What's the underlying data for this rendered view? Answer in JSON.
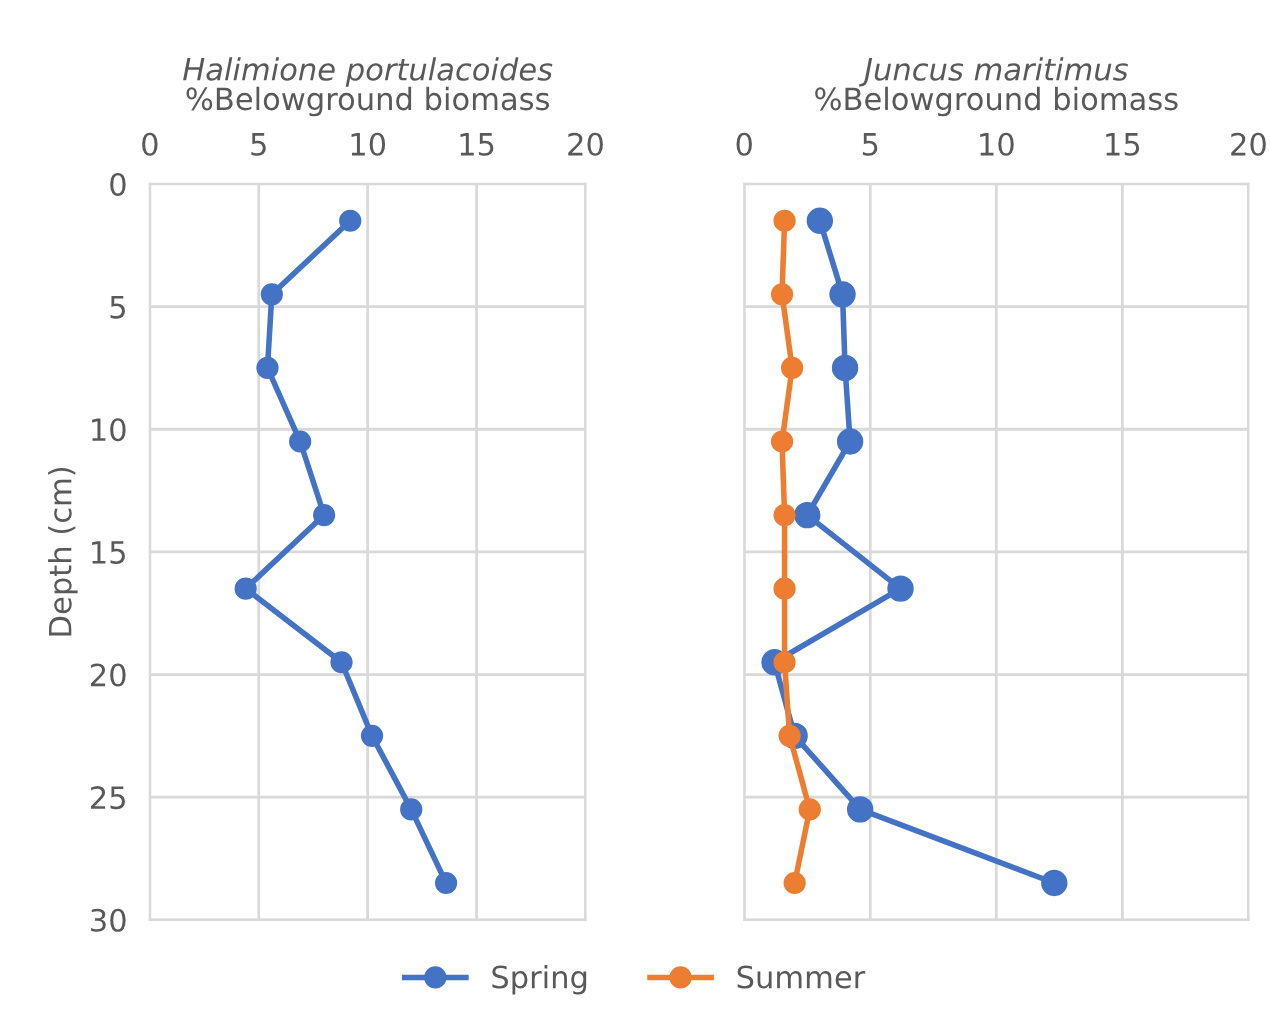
{
  "chart_data": [
    {
      "type": "line",
      "title": "Halimione portulacoides",
      "xlabel": "%Belowground biomass",
      "ylabel": "Depth (cm)",
      "orientation": "horizontal",
      "x": [
        1.5,
        4.5,
        7.5,
        10.5,
        13.5,
        16.5,
        19.5,
        22.5,
        25.5,
        28.5
      ],
      "xlim": [
        0,
        20
      ],
      "xticks": [
        0,
        5,
        10,
        15,
        20
      ],
      "ylim": [
        30,
        0
      ],
      "yticks": [
        0,
        5,
        10,
        15,
        20,
        25,
        30
      ],
      "grid": true,
      "marker": "circle",
      "line_style": "solid",
      "series": [
        {
          "name": "Spring",
          "color": "#4472c4",
          "values": [
            9.2,
            5.6,
            5.4,
            6.9,
            8.0,
            4.4,
            8.8,
            10.2,
            12.0,
            13.6
          ]
        }
      ]
    },
    {
      "type": "line",
      "title": "Juncus maritimus",
      "xlabel": "%Belowground biomass",
      "orientation": "horizontal",
      "x": [
        1.5,
        4.5,
        7.5,
        10.5,
        13.5,
        16.5,
        19.5,
        22.5,
        25.5,
        28.5
      ],
      "xlim": [
        0,
        20
      ],
      "xticks": [
        0,
        5,
        10,
        15,
        20
      ],
      "ylim": [
        30,
        0
      ],
      "yticks": [
        0,
        5,
        10,
        15,
        20,
        25,
        30
      ],
      "tick_labels": "x",
      "grid": true,
      "marker": "circle",
      "line_style": "solid",
      "legend": "bottom",
      "series": [
        {
          "name": "Spring",
          "color": "#4472c4",
          "values": [
            3.0,
            3.9,
            4.0,
            4.2,
            2.5,
            6.2,
            1.2,
            2.0,
            4.6,
            12.3
          ]
        },
        {
          "name": "Summer",
          "color": "#ed7d31",
          "values": [
            1.6,
            1.5,
            1.9,
            1.5,
            1.6,
            1.6,
            1.6,
            1.8,
            2.6,
            2.0
          ]
        }
      ]
    }
  ]
}
